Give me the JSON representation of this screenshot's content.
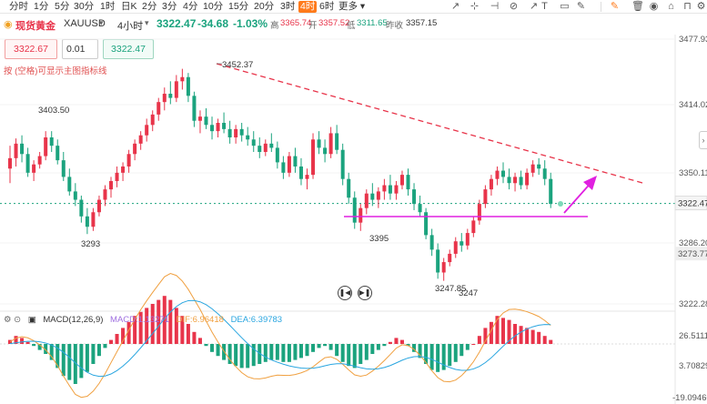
{
  "timeframes": [
    "分时",
    "1分",
    "5分",
    "30分",
    "1时",
    "日K",
    "2分",
    "3分",
    "4分",
    "10分",
    "15分",
    "20分",
    "3时",
    "4时",
    "6时",
    "更多"
  ],
  "active_timeframe": "4时",
  "header": {
    "symbol_name": "现货黄金",
    "symbol_code": "XAUUSD",
    "period": "4小时",
    "price": "3322.47",
    "change": "-34.68",
    "change_pct": "-1.03%",
    "high_label": "高",
    "high": "3365.74",
    "open_label": "开",
    "open": "3357.52",
    "low_label": "低",
    "low": "3311.65",
    "prev_label": "昨收",
    "prev": "3357.15"
  },
  "trade": {
    "sell_price": "3322.67",
    "lot": "0.01",
    "buy_price": "3322.47"
  },
  "note": "按 (空格)可显示主图指标线",
  "price_axis": [
    "3477.93",
    "3414.02",
    "3350.11",
    "3286.20",
    "3222.28"
  ],
  "price_axis_tag": "3322.47",
  "price_axis_gray": "3273.77",
  "annotations": {
    "high": "3452.37",
    "left_high": "3403.50",
    "low_a": "3293",
    "low_b": "3395",
    "low_c": "3247.85",
    "low_d": "3247"
  },
  "macd": {
    "title": "MACD(12,26,9)",
    "macd": "MACD:1.13271",
    "dif": "DIF:6.96418",
    "dea": "DEA:6.39783",
    "axis": [
      "26.51119",
      "3.70829",
      "-19.09460"
    ]
  },
  "colors": {
    "up": "#e8344a",
    "down": "#1ba37e",
    "trend": "#e8344a",
    "support": "#e020e0",
    "accent": "#ff7a1a",
    "dif": "#f0a040",
    "dea": "#2aa6e0"
  },
  "candles": [
    [
      3356,
      3378,
      3342,
      3366
    ],
    [
      3366,
      3385,
      3358,
      3380
    ],
    [
      3380,
      3388,
      3362,
      3370
    ],
    [
      3370,
      3376,
      3348,
      3352
    ],
    [
      3352,
      3364,
      3344,
      3360
    ],
    [
      3360,
      3372,
      3356,
      3368
    ],
    [
      3368,
      3392,
      3364,
      3386
    ],
    [
      3386,
      3392,
      3372,
      3378
    ],
    [
      3378,
      3384,
      3360,
      3364
    ],
    [
      3364,
      3372,
      3344,
      3348
    ],
    [
      3348,
      3356,
      3330,
      3334
    ],
    [
      3334,
      3342,
      3320,
      3326
    ],
    [
      3326,
      3330,
      3304,
      3310
    ],
    [
      3310,
      3318,
      3293,
      3300
    ],
    [
      3300,
      3318,
      3296,
      3314
    ],
    [
      3314,
      3330,
      3310,
      3326
    ],
    [
      3326,
      3340,
      3320,
      3336
    ],
    [
      3336,
      3348,
      3328,
      3344
    ],
    [
      3344,
      3358,
      3338,
      3352
    ],
    [
      3352,
      3362,
      3344,
      3358
    ],
    [
      3358,
      3374,
      3352,
      3370
    ],
    [
      3370,
      3384,
      3364,
      3380
    ],
    [
      3380,
      3392,
      3374,
      3388
    ],
    [
      3388,
      3404,
      3382,
      3398
    ],
    [
      3398,
      3412,
      3392,
      3408
    ],
    [
      3408,
      3424,
      3402,
      3420
    ],
    [
      3420,
      3434,
      3412,
      3428
    ],
    [
      3428,
      3440,
      3418,
      3424
    ],
    [
      3424,
      3446,
      3420,
      3440
    ],
    [
      3440,
      3452,
      3432,
      3444
    ],
    [
      3444,
      3448,
      3420,
      3426
    ],
    [
      3426,
      3430,
      3396,
      3402
    ],
    [
      3402,
      3412,
      3390,
      3406
    ],
    [
      3406,
      3414,
      3394,
      3398
    ],
    [
      3398,
      3406,
      3384,
      3392
    ],
    [
      3392,
      3404,
      3386,
      3400
    ],
    [
      3400,
      3410,
      3390,
      3394
    ],
    [
      3394,
      3402,
      3380,
      3386
    ],
    [
      3386,
      3398,
      3380,
      3394
    ],
    [
      3394,
      3400,
      3382,
      3388
    ],
    [
      3388,
      3396,
      3378,
      3384
    ],
    [
      3384,
      3392,
      3372,
      3378
    ],
    [
      3378,
      3386,
      3366,
      3372
    ],
    [
      3372,
      3384,
      3368,
      3380
    ],
    [
      3380,
      3390,
      3372,
      3376
    ],
    [
      3376,
      3382,
      3356,
      3362
    ],
    [
      3362,
      3368,
      3346,
      3352
    ],
    [
      3352,
      3372,
      3348,
      3368
    ],
    [
      3368,
      3376,
      3352,
      3358
    ],
    [
      3358,
      3366,
      3340,
      3346
    ],
    [
      3346,
      3356,
      3336,
      3350
    ],
    [
      3350,
      3390,
      3346,
      3384
    ],
    [
      3384,
      3392,
      3370,
      3376
    ],
    [
      3376,
      3384,
      3362,
      3370
    ],
    [
      3370,
      3396,
      3366,
      3390
    ],
    [
      3390,
      3398,
      3370,
      3374
    ],
    [
      3374,
      3380,
      3340,
      3346
    ],
    [
      3346,
      3352,
      3322,
      3328
    ],
    [
      3328,
      3334,
      3298,
      3304
    ],
    [
      3304,
      3322,
      3296,
      3318
    ],
    [
      3318,
      3336,
      3312,
      3332
    ],
    [
      3332,
      3342,
      3320,
      3326
    ],
    [
      3326,
      3338,
      3318,
      3334
    ],
    [
      3334,
      3346,
      3326,
      3340
    ],
    [
      3340,
      3350,
      3326,
      3332
    ],
    [
      3332,
      3344,
      3326,
      3340
    ],
    [
      3340,
      3354,
      3336,
      3350
    ],
    [
      3350,
      3356,
      3330,
      3336
    ],
    [
      3336,
      3342,
      3316,
      3322
    ],
    [
      3322,
      3330,
      3310,
      3314
    ],
    [
      3314,
      3318,
      3288,
      3292
    ],
    [
      3292,
      3298,
      3272,
      3278
    ],
    [
      3278,
      3284,
      3250,
      3256
    ],
    [
      3256,
      3270,
      3248,
      3266
    ],
    [
      3266,
      3278,
      3262,
      3274
    ],
    [
      3274,
      3290,
      3270,
      3286
    ],
    [
      3286,
      3294,
      3276,
      3282
    ],
    [
      3282,
      3298,
      3278,
      3294
    ],
    [
      3294,
      3310,
      3290,
      3306
    ],
    [
      3306,
      3326,
      3302,
      3322
    ],
    [
      3322,
      3340,
      3318,
      3336
    ],
    [
      3336,
      3350,
      3330,
      3346
    ],
    [
      3346,
      3358,
      3340,
      3354
    ],
    [
      3354,
      3362,
      3342,
      3348
    ],
    [
      3348,
      3356,
      3336,
      3342
    ],
    [
      3342,
      3352,
      3334,
      3348
    ],
    [
      3348,
      3354,
      3336,
      3340
    ],
    [
      3340,
      3356,
      3336,
      3352
    ],
    [
      3352,
      3364,
      3348,
      3360
    ],
    [
      3360,
      3366,
      3350,
      3356
    ],
    [
      3356,
      3364,
      3340,
      3346
    ],
    [
      3346,
      3352,
      3318,
      3322
    ]
  ],
  "macd_hist": [
    2,
    4,
    3,
    1,
    -1,
    -3,
    -5,
    -8,
    -12,
    -16,
    -18,
    -20,
    -17,
    -14,
    -10,
    -6,
    -2,
    2,
    5,
    8,
    11,
    14,
    16,
    18,
    20,
    22,
    24,
    22,
    18,
    14,
    10,
    6,
    3,
    -1,
    -4,
    -6,
    -8,
    -10,
    -11,
    -12,
    -12,
    -11,
    -10,
    -9,
    -8,
    -8,
    -9,
    -9,
    -8,
    -7,
    -6,
    -4,
    -2,
    -1,
    -3,
    -6,
    -9,
    -11,
    -12,
    -10,
    -8,
    -5,
    -3,
    -1,
    1,
    3,
    2,
    -1,
    -4,
    -7,
    -10,
    -13,
    -14,
    -13,
    -11,
    -9,
    -6,
    -3,
    0,
    4,
    8,
    11,
    14,
    13,
    12,
    10,
    9,
    8,
    7,
    6,
    4,
    2
  ]
}
